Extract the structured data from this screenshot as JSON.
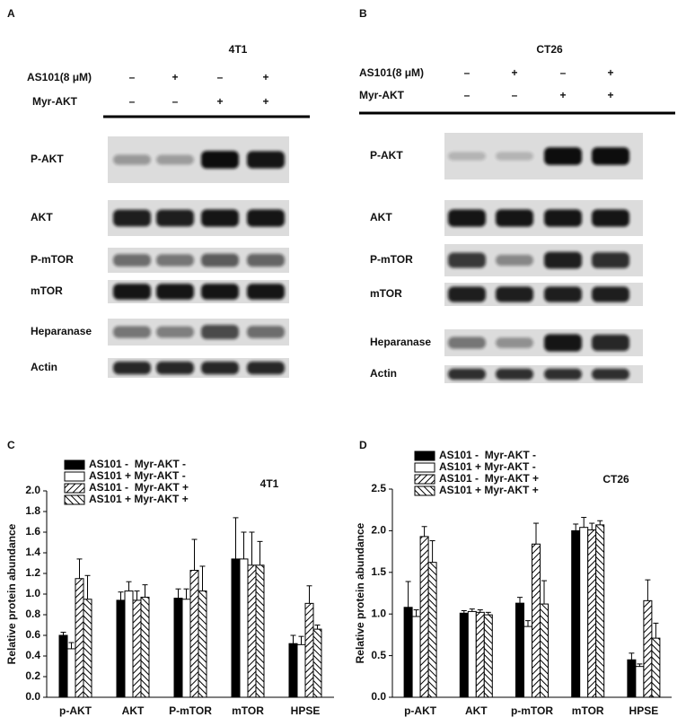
{
  "figure": {
    "panels": [
      {
        "label": "A",
        "title": "4T1",
        "conditions": [
          {
            "label": "AS101(8 μM)",
            "signs": [
              "–",
              "+",
              "–",
              "+"
            ]
          },
          {
            "label": "Myr-AKT",
            "signs": [
              "–",
              "–",
              "+",
              "+"
            ]
          }
        ],
        "bands": [
          "P-AKT",
          "AKT",
          "P-mTOR",
          "mTOR",
          "Heparanase",
          "Actin"
        ]
      },
      {
        "label": "B",
        "title": "CT26",
        "conditions": [
          {
            "label": "AS101(8 μM)",
            "signs": [
              "–",
              "+",
              "–",
              "+"
            ]
          },
          {
            "label": "Myr-AKT",
            "signs": [
              "–",
              "–",
              "+",
              "+"
            ]
          }
        ],
        "bands": [
          "P-AKT",
          "AKT",
          "P-mTOR",
          "mTOR",
          "Heparanase",
          "Actin"
        ]
      }
    ]
  },
  "chart_data": [
    {
      "type": "bar",
      "panel": "C",
      "title": "4T1",
      "y_label": "Relative protein abundance",
      "categories": [
        "p-AKT",
        "AKT",
        "P-mTOR",
        "mTOR",
        "HPSE"
      ],
      "series": [
        {
          "name": "AS101 -  Myr-AKT -",
          "color": "#000000",
          "fill_style": "solid",
          "values": [
            0.6,
            0.94,
            0.96,
            1.34,
            0.52
          ],
          "errors": [
            0.03,
            0.08,
            0.09,
            0.4,
            0.08
          ]
        },
        {
          "name": "AS101 + Myr-AKT -",
          "color": "#000000",
          "fill_style": "empty",
          "values": [
            0.47,
            1.03,
            0.95,
            1.34,
            0.51
          ],
          "errors": [
            0.06,
            0.09,
            0.1,
            0.26,
            0.08
          ]
        },
        {
          "name": "AS101 -  Myr-AKT +",
          "color": "#000000",
          "fill_style": "diagonal-up",
          "values": [
            1.15,
            0.94,
            1.23,
            1.28,
            0.91
          ],
          "errors": [
            0.19,
            0.09,
            0.3,
            0.32,
            0.17
          ]
        },
        {
          "name": "AS101 + Myr-AKT +",
          "color": "#000000",
          "fill_style": "diagonal-down",
          "values": [
            0.95,
            0.97,
            1.03,
            1.28,
            0.66
          ],
          "errors": [
            0.23,
            0.12,
            0.24,
            0.23,
            0.04
          ]
        }
      ],
      "ylim": [
        0,
        2.0
      ],
      "yticks": [
        {
          "value": 0,
          "label": "0.0"
        },
        0.2,
        0.4,
        0.6,
        0.8,
        {
          "value": 1,
          "label": "1.0"
        },
        1.2,
        1.4,
        1.6,
        1.8,
        {
          "value": 2,
          "label": "2.0"
        }
      ]
    },
    {
      "type": "bar",
      "panel": "D",
      "title": "CT26",
      "y_label": "Relative protein abundance",
      "categories": [
        "p-AKT",
        "AKT",
        "p-mTOR",
        "mTOR",
        "HPSE"
      ],
      "series": [
        {
          "name": "AS101 -  Myr-AKT -",
          "color": "#000000",
          "fill_style": "solid",
          "values": [
            1.08,
            1.01,
            1.13,
            2.0,
            0.45
          ],
          "errors": [
            0.31,
            0.03,
            0.07,
            0.08,
            0.08
          ]
        },
        {
          "name": "AS101 + Myr-AKT -",
          "color": "#000000",
          "fill_style": "empty",
          "values": [
            0.97,
            1.03,
            0.85,
            2.04,
            0.37
          ],
          "errors": [
            0.08,
            0.03,
            0.07,
            0.12,
            0.03
          ]
        },
        {
          "name": "AS101 -  Myr-AKT +",
          "color": "#000000",
          "fill_style": "diagonal-up",
          "values": [
            1.93,
            1.02,
            1.84,
            2.01,
            1.16
          ],
          "errors": [
            0.12,
            0.03,
            0.25,
            0.08,
            0.25
          ]
        },
        {
          "name": "AS101 + Myr-AKT +",
          "color": "#000000",
          "fill_style": "diagonal-down",
          "values": [
            1.62,
            0.99,
            1.12,
            2.07,
            0.71
          ],
          "errors": [
            0.26,
            0.03,
            0.28,
            0.05,
            0.18
          ]
        }
      ],
      "ylim": [
        0,
        2.5
      ],
      "yticks": [
        {
          "value": 0,
          "label": "0.0"
        },
        0.5,
        {
          "value": 1,
          "label": "1.0"
        },
        1.5,
        {
          "value": 2,
          "label": "2.0"
        },
        2.5
      ]
    }
  ]
}
